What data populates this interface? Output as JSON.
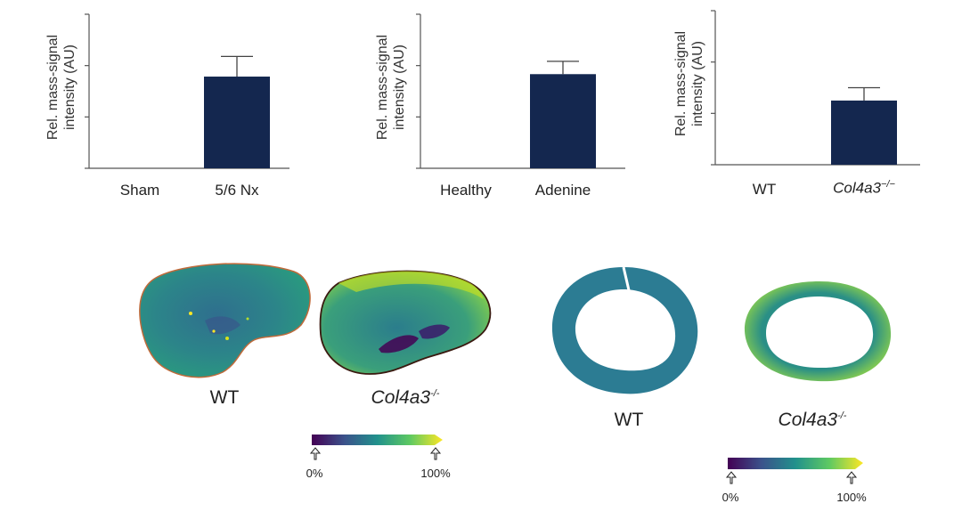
{
  "chart_data": [
    {
      "type": "bar",
      "ylabel": "Rel. mass-signal intensity (AU)",
      "categories": [
        "Sham",
        "5/6 Nx"
      ],
      "values": [
        0,
        2.5
      ],
      "errors": [
        0,
        0.55
      ],
      "ylim": [
        0,
        4.2
      ],
      "ticks": [
        0,
        1.4,
        2.8,
        4.2
      ],
      "bar_color": "#14274f"
    },
    {
      "type": "bar",
      "ylabel": "Rel. mass-signal intensity (AU)",
      "categories": [
        "Healthy",
        "Adenine"
      ],
      "values": [
        0,
        2.2
      ],
      "errors": [
        0,
        0.3
      ],
      "ylim": [
        0,
        3.6
      ],
      "ticks": [
        0,
        1.2,
        2.4,
        3.6
      ],
      "bar_color": "#14274f"
    },
    {
      "type": "bar",
      "ylabel": "Rel. mass-signal intensity (AU)",
      "categories": [
        "WT",
        "Col4a3"
      ],
      "category_superscripts": [
        "",
        "−/−"
      ],
      "values": [
        0,
        1.5
      ],
      "errors": [
        0,
        0.3
      ],
      "ylim": [
        0,
        3.6
      ],
      "ticks": [
        0,
        1.2,
        2.4,
        3.6
      ],
      "bar_color": "#14274f"
    }
  ],
  "images": {
    "kidney": {
      "labels": [
        "WT",
        "Col4a3"
      ],
      "superscript": "-/-",
      "colorbar": {
        "min_label": "0%",
        "max_label": "100%",
        "colormap": "viridis"
      }
    },
    "aorta": {
      "labels": [
        "WT",
        "Col4a3"
      ],
      "superscript": "-/-",
      "colorbar": {
        "min_label": "0%",
        "max_label": "100%",
        "colormap": "viridis"
      }
    }
  }
}
